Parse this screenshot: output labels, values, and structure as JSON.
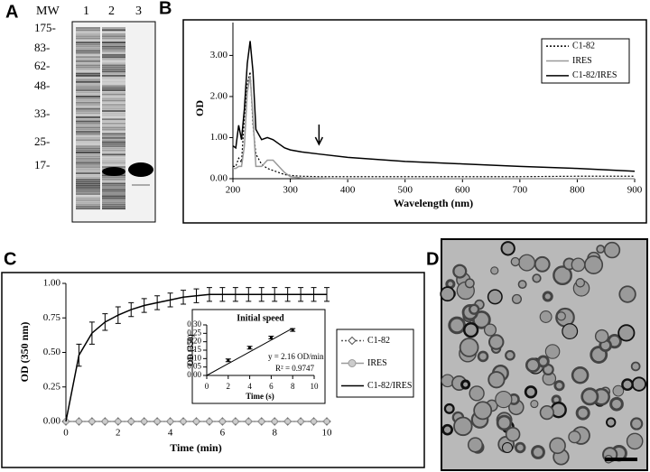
{
  "panels": {
    "A": {
      "label": "A",
      "header": [
        "MW",
        "1",
        "2",
        "3"
      ],
      "mw_markers": [
        "175-",
        "83-",
        "62-",
        "48-",
        "33-",
        "25-",
        "17-"
      ]
    },
    "B": {
      "label": "B"
    },
    "C": {
      "label": "C"
    },
    "D": {
      "label": "D"
    }
  },
  "chart_data": [
    {
      "type": "line",
      "xlabel": "Wavelength (nm)",
      "ylabel": "OD",
      "x": [
        200,
        205,
        210,
        215,
        220,
        225,
        230,
        235,
        240,
        250,
        260,
        270,
        280,
        290,
        300,
        320,
        350,
        400,
        500,
        600,
        700,
        800,
        900
      ],
      "series": [
        {
          "name": "C1-82",
          "color": "#000000",
          "dash": "2,2",
          "values": [
            0.3,
            0.3,
            0.5,
            0.4,
            1.5,
            2.3,
            2.6,
            1.3,
            0.6,
            0.35,
            0.25,
            0.2,
            0.15,
            0.1,
            0.08,
            0.06,
            0.05,
            0.05,
            0.05,
            0.05,
            0.05,
            0.06,
            0.06
          ]
        },
        {
          "name": "IRES",
          "color": "#999999",
          "values": [
            0.25,
            0.25,
            0.3,
            0.3,
            0.8,
            2.1,
            2.5,
            1.5,
            0.3,
            0.3,
            0.45,
            0.45,
            0.3,
            0.15,
            0.05,
            0.02,
            0.01,
            0,
            0,
            0,
            0,
            0,
            0
          ]
        },
        {
          "name": "C1-82/IRES",
          "color": "#000000",
          "values": [
            0.8,
            0.75,
            1.3,
            0.95,
            1.7,
            2.8,
            3.35,
            2.6,
            1.2,
            0.95,
            1.0,
            0.95,
            0.85,
            0.75,
            0.7,
            0.65,
            0.6,
            0.52,
            0.42,
            0.36,
            0.3,
            0.25,
            0.18
          ]
        }
      ],
      "xlim": [
        200,
        900
      ],
      "xticks": [
        200,
        300,
        400,
        500,
        600,
        700,
        800,
        900
      ],
      "ylim": [
        0,
        3.8
      ],
      "yticks": [
        {
          "value": 0,
          "label": "0.00"
        },
        {
          "value": 1,
          "label": "1.00"
        },
        {
          "value": 2,
          "label": "2.00"
        },
        {
          "value": 3,
          "label": "3.00"
        }
      ],
      "arrow_x": 350,
      "legend": "upper right"
    },
    {
      "type": "line",
      "xlabel": "Time (min)",
      "ylabel": "OD (350 nm)",
      "x": [
        0,
        0.5,
        1,
        1.5,
        2,
        2.5,
        3,
        3.5,
        4,
        4.5,
        5,
        5.5,
        6,
        6.5,
        7,
        7.5,
        8,
        8.5,
        9,
        9.5,
        10
      ],
      "series": [
        {
          "name": "C1-82",
          "color": "#555555",
          "dash": "2,2",
          "marker": "diamond",
          "values": [
            0,
            0,
            0,
            0,
            0,
            0,
            0,
            0,
            0,
            0,
            0,
            0,
            0,
            0,
            0,
            0,
            0,
            0,
            0,
            0,
            0
          ]
        },
        {
          "name": "IRES",
          "color": "#999999",
          "marker": "circle",
          "values": [
            0,
            0,
            0,
            0,
            0,
            0,
            0,
            0,
            0,
            0,
            0,
            0,
            0,
            0,
            0,
            0,
            0,
            0,
            0,
            0,
            0
          ]
        },
        {
          "name": "C1-82/IRES",
          "color": "#000000",
          "values": [
            0,
            0.48,
            0.64,
            0.72,
            0.77,
            0.81,
            0.84,
            0.86,
            0.88,
            0.9,
            0.91,
            0.92,
            0.92,
            0.92,
            0.92,
            0.92,
            0.92,
            0.92,
            0.92,
            0.92,
            0.92
          ],
          "errors": [
            0,
            0.08,
            0.08,
            0.06,
            0.06,
            0.05,
            0.05,
            0.05,
            0.05,
            0.05,
            0.05,
            0.05,
            0.05,
            0.05,
            0.05,
            0.05,
            0.05,
            0.05,
            0.05,
            0.05,
            0.05
          ]
        }
      ],
      "xlim": [
        0,
        10
      ],
      "xticks": [
        0,
        2,
        4,
        6,
        8,
        10
      ],
      "ylim": [
        0,
        1
      ],
      "yticks": [
        {
          "value": 0,
          "label": "0.00"
        },
        {
          "value": 0.25,
          "label": "0.25"
        },
        {
          "value": 0.5,
          "label": "0.50"
        },
        {
          "value": 0.75,
          "label": "0.75"
        },
        {
          "value": 1,
          "label": "1.00"
        }
      ],
      "legend": "right"
    },
    {
      "type": "scatter",
      "title": "Initial speed",
      "xlabel": "Time (s)",
      "ylabel": "OD (350)",
      "x": [
        2,
        4,
        6,
        8
      ],
      "series": [
        {
          "color": "#000000",
          "values": [
            0.09,
            0.165,
            0.225,
            0.27
          ],
          "errors": [
            0.008,
            0.008,
            0.008,
            0.008
          ]
        }
      ],
      "trendline": {
        "x": [
          0,
          8
        ],
        "values": [
          0,
          0.28
        ]
      },
      "annotations": [
        "y = 2.16 OD/min",
        "R² = 0.9747"
      ],
      "xlim": [
        0,
        10
      ],
      "xticks": [
        0,
        2,
        4,
        6,
        8,
        10
      ],
      "ylim": [
        0,
        0.3
      ],
      "yticks": [
        {
          "value": 0,
          "label": "0.00"
        },
        {
          "value": 0.05,
          "label": "0.05"
        },
        {
          "value": 0.1,
          "label": "0.10"
        },
        {
          "value": 0.15,
          "label": "0.15"
        },
        {
          "value": 0.2,
          "label": "0.20"
        },
        {
          "value": 0.25,
          "label": "0.25"
        },
        {
          "value": 0.3,
          "label": "0.30"
        }
      ]
    }
  ]
}
